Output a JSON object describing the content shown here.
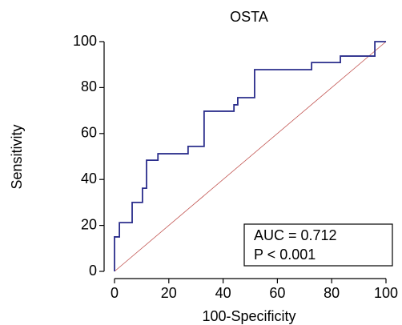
{
  "chart_data": {
    "type": "line",
    "title": "OSTA",
    "x_label": "100-Specificity",
    "y_label": "Sensitivity",
    "xlim": [
      0,
      100
    ],
    "ylim": [
      0,
      100
    ],
    "xticks": [
      0,
      20,
      40,
      60,
      80,
      100
    ],
    "yticks": [
      0,
      20,
      40,
      60,
      80,
      100
    ],
    "series": [
      {
        "color": "#2b2e8c",
        "x": [
          0,
          0,
          1.8,
          1.8,
          6.5,
          6.5,
          10.3,
          10.3,
          11.8,
          11.8,
          16,
          16,
          27.1,
          27.1,
          33,
          33,
          44,
          44,
          45.4,
          45.4,
          51.6,
          51.6,
          72.6,
          72.6,
          83.2,
          83.2,
          95.9,
          95.9,
          100
        ],
        "y": [
          0,
          15,
          15,
          21.2,
          21.2,
          30,
          30,
          36.2,
          36.2,
          48.4,
          48.4,
          51.2,
          51.2,
          54.4,
          54.4,
          69.7,
          69.7,
          72.5,
          72.5,
          75.6,
          75.6,
          87.8,
          87.8,
          90.9,
          90.9,
          93.7,
          93.7,
          100,
          100
        ]
      },
      {
        "color": "#c0504d",
        "x": [
          0,
          100
        ],
        "y": [
          0,
          100
        ]
      }
    ],
    "annotations": [
      "AUC = 0.712",
      "P < 0.001"
    ]
  }
}
